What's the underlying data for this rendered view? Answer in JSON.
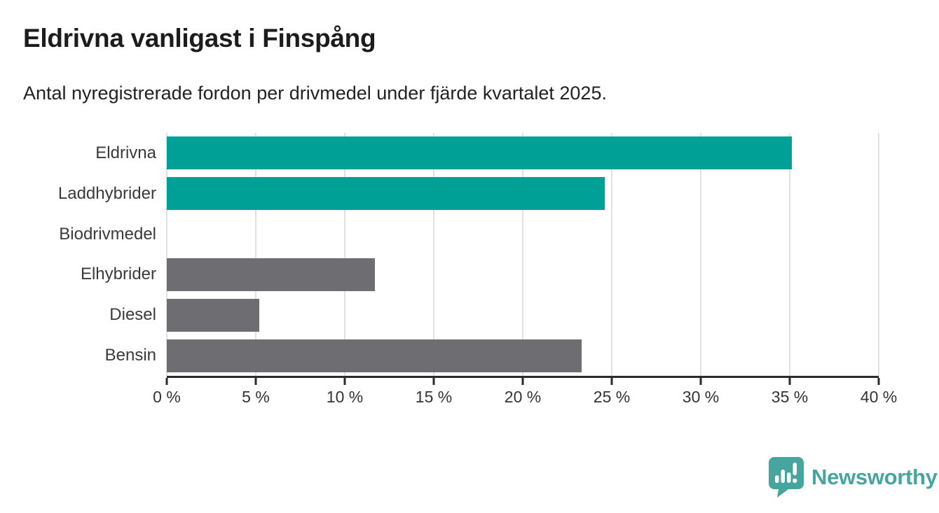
{
  "title": "Eldrivna vanligast i Finspång",
  "subtitle": "Antal nyregistrerade fordon per drivmedel under fjärde kvartalet 2025.",
  "colors": {
    "accent_teal": "#00a096",
    "neutral_gray": "#6e6d71",
    "gridline": "#e1e1e1",
    "axis": "#2b2b2b",
    "title_text": "#1c1c1c",
    "label_text": "#3a3a3a",
    "tick_text": "#333333",
    "logo_teal": "#47a5a0"
  },
  "chart_data": {
    "type": "bar",
    "orientation": "horizontal",
    "title": "Eldrivna vanligast i Finspång",
    "subtitle": "Antal nyregistrerade fordon per drivmedel under fjärde kvartalet 2025.",
    "categories": [
      "Eldrivna",
      "Laddhybrider",
      "Biodrivmedel",
      "Elhybrider",
      "Diesel",
      "Bensin"
    ],
    "values": [
      35.1,
      24.6,
      0,
      11.7,
      5.2,
      23.3
    ],
    "unit": "%",
    "bar_colors": [
      "#00a096",
      "#00a096",
      "#6e6d71",
      "#6e6d71",
      "#6e6d71",
      "#6e6d71"
    ],
    "xlim": [
      0,
      40
    ],
    "x_ticks": [
      "0 %",
      "5 %",
      "10 %",
      "15 %",
      "20 %",
      "25 %",
      "30 %",
      "35 %",
      "40 %"
    ],
    "x_tick_values": [
      0,
      5,
      10,
      15,
      20,
      25,
      30,
      35,
      40
    ],
    "grid": true,
    "legend": false
  },
  "logo": {
    "text": "Newsworthy",
    "icon": "newsworthy-speech-bubble-chart-icon"
  }
}
